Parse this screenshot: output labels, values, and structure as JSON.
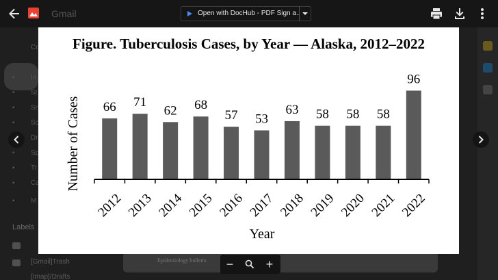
{
  "viewer": {
    "file_name": "Open with DocHub - PDF Sign a...",
    "back_icon": "arrow-back-icon",
    "actions": [
      "print-icon",
      "download-icon",
      "more-vert-icon"
    ],
    "zoom": {
      "minus": "−",
      "plus": "+"
    },
    "colors": {
      "file_icon": "#e94235",
      "toolbar": "#141414"
    }
  },
  "background_app": {
    "app_name": "Gmail",
    "compose_label": "Co",
    "nav_labels": [
      "In",
      "St",
      "Sn",
      "Sc",
      "Dr",
      "Sp",
      "Tr",
      "Ca",
      "M"
    ],
    "labels_title": "Labels",
    "label_items": [
      "[Gmail]Trash",
      "[Imap]/Drafts"
    ],
    "doc_fragment": "Epidemiology bulletin"
  },
  "chart_data": {
    "type": "bar",
    "title": "Figure. Tuberculosis Cases, by Year — Alaska, 2012–2022",
    "xlabel": "Year",
    "ylabel": "Number of Cases",
    "categories": [
      "2012",
      "2013",
      "2014",
      "2015",
      "2016",
      "2017",
      "2018",
      "2019",
      "2020",
      "2021",
      "2022"
    ],
    "values": [
      66,
      71,
      62,
      68,
      57,
      53,
      63,
      58,
      58,
      58,
      96
    ],
    "ylim": [
      0,
      100
    ],
    "bar_color": "#5a5a5a",
    "grid": false,
    "data_labels": true
  }
}
